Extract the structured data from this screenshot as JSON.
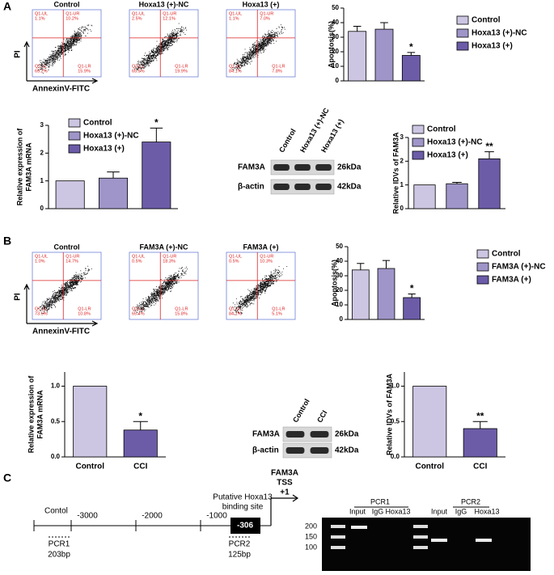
{
  "panels": [
    "A",
    "B",
    "C"
  ],
  "chart_data": [
    {
      "type": "bar",
      "ylabel": [
        "Apoptosis(%)"
      ],
      "categories": [
        "Control",
        "Hoxa13 (+)-NC",
        "Hoxa13 (+)"
      ],
      "values": [
        34,
        35.5,
        17.5
      ],
      "errors": [
        3.5,
        4.5,
        2
      ],
      "annotations": [
        null,
        null,
        "*"
      ],
      "colors": [
        "#cdc6e2",
        "#9f95c8",
        "#6c5ca8"
      ],
      "ylim": [
        0,
        50
      ],
      "yticks": [
        0,
        10,
        20,
        30,
        40,
        50
      ],
      "legend": true
    },
    {
      "type": "bar",
      "ylabel": [
        "Relative expression of",
        "FAM3A mRNA"
      ],
      "categories": [
        "Control",
        "Hoxa13 (+)-NC",
        "Hoxa13 (+)"
      ],
      "values": [
        1,
        1.1,
        2.4
      ],
      "errors": [
        0,
        0.22,
        0.5
      ],
      "annotations": [
        null,
        null,
        "*"
      ],
      "colors": [
        "#cdc6e2",
        "#9f95c8",
        "#6c5ca8"
      ],
      "ylim": [
        0,
        3
      ],
      "yticks": [
        0,
        1,
        2,
        3
      ],
      "legend": true
    },
    {
      "type": "bar",
      "ylabel": [
        "Relative IDVs of FAM3A"
      ],
      "categories": [
        "Control",
        "Hoxa13 (+)-NC",
        "Hoxa13 (+)"
      ],
      "values": [
        1,
        1.05,
        2.1
      ],
      "errors": [
        0,
        0.06,
        0.3
      ],
      "annotations": [
        null,
        null,
        "**"
      ],
      "colors": [
        "#cdc6e2",
        "#9f95c8",
        "#6c5ca8"
      ],
      "ylim": [
        0,
        3
      ],
      "yticks": [
        0,
        1,
        2,
        3
      ],
      "legend": true
    },
    {
      "type": "bar",
      "ylabel": [
        "Apoptosis(%)"
      ],
      "categories": [
        "Control",
        "FAM3A (+)-NC",
        "FAM3A (+)"
      ],
      "values": [
        34,
        35,
        15
      ],
      "errors": [
        4.5,
        5.5,
        2.5
      ],
      "annotations": [
        null,
        null,
        "*"
      ],
      "colors": [
        "#cdc6e2",
        "#9f95c8",
        "#6c5ca8"
      ],
      "ylim": [
        0,
        50
      ],
      "yticks": [
        0,
        10,
        20,
        30,
        40,
        50
      ],
      "legend": true
    },
    {
      "type": "bar",
      "ylabel": [
        "Relative expression of",
        "FAM3A mRNA"
      ],
      "categories": [
        "Control",
        "CCI"
      ],
      "values": [
        1.0,
        0.38
      ],
      "errors": [
        0,
        0.12
      ],
      "annotations": [
        null,
        "*"
      ],
      "colors": [
        "#cdc6e2",
        "#6c5ca8"
      ],
      "ylim": [
        0,
        1.2
      ],
      "yticks": [
        {
          "value": 0,
          "label": "0.0"
        },
        {
          "value": 0.5,
          "label": "0.5"
        },
        {
          "value": 1,
          "label": "1.0"
        }
      ],
      "legend": false
    },
    {
      "type": "bar",
      "ylabel": [
        "Relative IDVs of FAM3A"
      ],
      "categories": [
        "Control",
        "CCI"
      ],
      "values": [
        1.0,
        0.4
      ],
      "errors": [
        0,
        0.1
      ],
      "annotations": [
        null,
        "**"
      ],
      "colors": [
        "#cdc6e2",
        "#6c5ca8"
      ],
      "ylim": [
        0,
        1.2
      ],
      "yticks": [
        {
          "value": 0,
          "label": "0.0"
        },
        {
          "value": 0.5,
          "label": "0.5"
        },
        {
          "value": 1,
          "label": "1.0"
        }
      ],
      "legend": false
    }
  ],
  "flow": {
    "x_label": "AnnexinV-FITC",
    "y_label": "PI",
    "quadrant_names": [
      "Q1-UL",
      "Q1-UR",
      "Q1-LL",
      "Q1-LR"
    ],
    "panel_a": [
      {
        "title": "Control",
        "quadrants": [
          "1.1%",
          "10.2%",
          "69.2%",
          "15.9%"
        ]
      },
      {
        "title": "Hoxa13 (+)-NC",
        "quadrants": [
          "2.5%",
          "12.1%",
          "65.5%",
          "19.9%"
        ]
      },
      {
        "title": "Hoxa13 (+)",
        "quadrants": [
          "1.1%",
          "7.0%",
          "84.1%",
          "7.8%"
        ]
      }
    ],
    "panel_b": [
      {
        "title": "Control",
        "quadrants": [
          "1.0%",
          "14.7%",
          "73.5%",
          "10.8%"
        ]
      },
      {
        "title": "FAM3A (+)-NC",
        "quadrants": [
          "0.5%",
          "18.3%",
          "65.4%",
          "15.8%"
        ]
      },
      {
        "title": "FAM3A (+)",
        "quadrants": [
          "0.5%",
          "10.3%",
          "84.1%",
          "5.1%"
        ]
      }
    ]
  },
  "blot_a": {
    "lanes": [
      "Control",
      "Hoxa13 (+)-NC",
      "Hoxa13 (+)"
    ],
    "rows": [
      {
        "label": "FAM3A",
        "size": "26kDa"
      },
      {
        "label": "β-actin",
        "size": "42kDa"
      }
    ]
  },
  "blot_b": {
    "lanes": [
      "Control",
      "CCI"
    ],
    "rows": [
      {
        "label": "FAM3A",
        "size": "26kDa"
      },
      {
        "label": "β-actin",
        "size": "42kDa"
      }
    ]
  },
  "promoter": {
    "region": "Contol",
    "positions": [
      "-3000",
      "-2000",
      "-1000"
    ],
    "binding_site": [
      "Putative Hoxa13",
      "binding site"
    ],
    "site": "-306",
    "tss": [
      "FAM3A",
      "TSS",
      "+1"
    ],
    "pcr": [
      {
        "name": "PCR1",
        "size": "203bp"
      },
      {
        "name": "PCR2",
        "size": "125bp"
      }
    ]
  },
  "gel": {
    "groups": [
      "PCR1",
      "PCR2"
    ],
    "lanes": [
      "Input",
      "IgG",
      "Hoxa13",
      "Input",
      "IgG",
      "Hoxa13"
    ],
    "ladder": [
      "200",
      "150",
      "100"
    ]
  }
}
